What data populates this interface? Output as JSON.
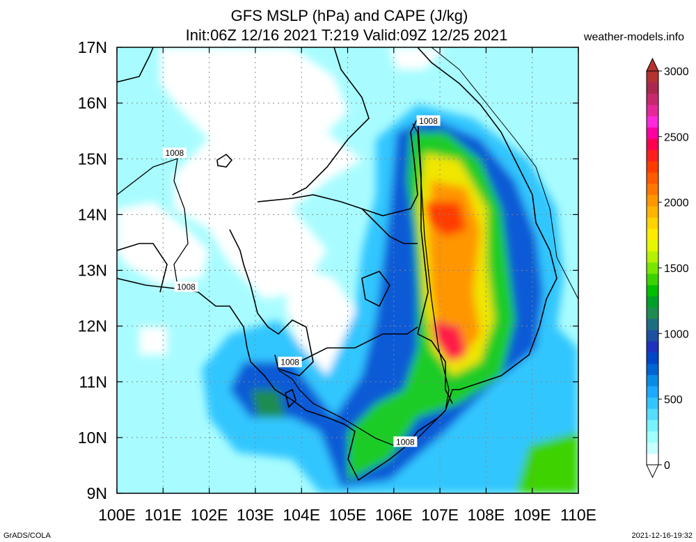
{
  "title": {
    "line1": "GFS MSLP (hPa) and CAPE (J/kg)",
    "line2": "Init:06Z 12/16 2021 T:219 Valid:09Z 12/25 2021"
  },
  "site": "weather-models.info",
  "footer": {
    "left": "GrADS/COLA",
    "right": "2021-12-16-19:32"
  },
  "map": {
    "lon_range": [
      100,
      110
    ],
    "lat_range": [
      9,
      17
    ],
    "x_ticks": [
      "100E",
      "101E",
      "102E",
      "103E",
      "104E",
      "105E",
      "106E",
      "107E",
      "108E",
      "109E",
      "110E"
    ],
    "y_ticks": [
      "9N",
      "10N",
      "11N",
      "12N",
      "13N",
      "14N",
      "15N",
      "16N",
      "17N"
    ],
    "grid": true,
    "contour_labels": [
      {
        "text": "1008",
        "lon": 101.25,
        "lat": 15.1
      },
      {
        "text": "1008",
        "lon": 101.5,
        "lat": 12.7
      },
      {
        "text": "1008",
        "lon": 103.75,
        "lat": 11.35
      },
      {
        "text": "1008",
        "lon": 106.75,
        "lat": 15.68
      },
      {
        "text": "1008",
        "lon": 106.25,
        "lat": 9.92
      }
    ]
  },
  "colorbar": {
    "ticks": [
      "0",
      "500",
      "1000",
      "1500",
      "2000",
      "2500",
      "3000"
    ],
    "colors": [
      "#ffffff",
      "#c8ffff",
      "#a0ffff",
      "#78f2ff",
      "#55dcff",
      "#32c6ff",
      "#1ea8ff",
      "#0a8ce6",
      "#0064d2",
      "#0046c8",
      "#1e32be",
      "#1e50a0",
      "#1e6e82",
      "#1e8c50",
      "#00a028",
      "#00be00",
      "#3cd200",
      "#78e600",
      "#b4f000",
      "#e6f500",
      "#ffeb00",
      "#ffd200",
      "#ffb400",
      "#ff9600",
      "#ff7800",
      "#ff5a00",
      "#ff3c00",
      "#ff1e1e",
      "#ff0050",
      "#ff00a0",
      "#ff28dc",
      "#e6289b",
      "#c8286e",
      "#aa2850",
      "#b43232"
    ]
  }
}
